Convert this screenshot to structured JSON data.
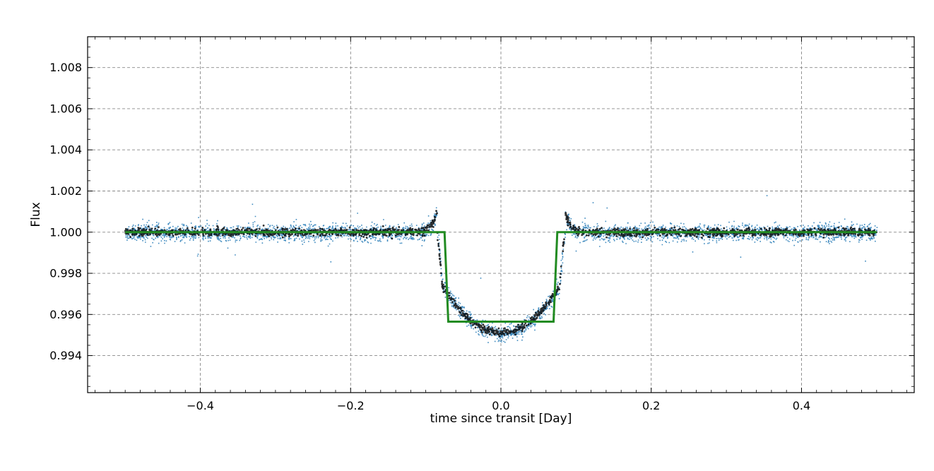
{
  "chart_data": {
    "type": "scatter",
    "title": "",
    "xlabel": "time since transit [Day]",
    "ylabel": "Flux",
    "xlim": [
      -0.55,
      0.55
    ],
    "ylim": [
      0.9922,
      1.0095
    ],
    "x_ticks": [
      -0.4,
      -0.2,
      0.0,
      0.2,
      0.4
    ],
    "x_tick_labels": [
      "−0.4",
      "−0.2",
      "0.0",
      "0.2",
      "0.4"
    ],
    "y_ticks": [
      0.994,
      0.996,
      0.998,
      1.0,
      1.002,
      1.004,
      1.006,
      1.008
    ],
    "y_tick_labels": [
      "0.994",
      "0.996",
      "0.998",
      "1.000",
      "1.002",
      "1.004",
      "1.006",
      "1.008"
    ],
    "grid": true,
    "legend": "none",
    "series": [
      {
        "kind": "scatter-cloud",
        "color": "#1f77b4",
        "x_range": [
          -0.5,
          0.5
        ],
        "out_of_transit_flux": 1.0,
        "transit_start": -0.085,
        "transit_end": 0.085,
        "transit_min_flux": 0.9951,
        "ingress_egress_bump_flux": 1.0011,
        "scatter": 0.0002
      },
      {
        "kind": "binned-points",
        "color": "#000000",
        "out_of_transit_flux": 1.0,
        "transit_min_flux": 0.9951
      },
      {
        "kind": "box-model",
        "color": "#228b22",
        "x": [
          -0.5,
          -0.075,
          -0.07,
          0.07,
          0.075,
          0.5
        ],
        "y": [
          1.0,
          1.0,
          0.99565,
          0.99565,
          1.0,
          1.0
        ]
      }
    ]
  }
}
